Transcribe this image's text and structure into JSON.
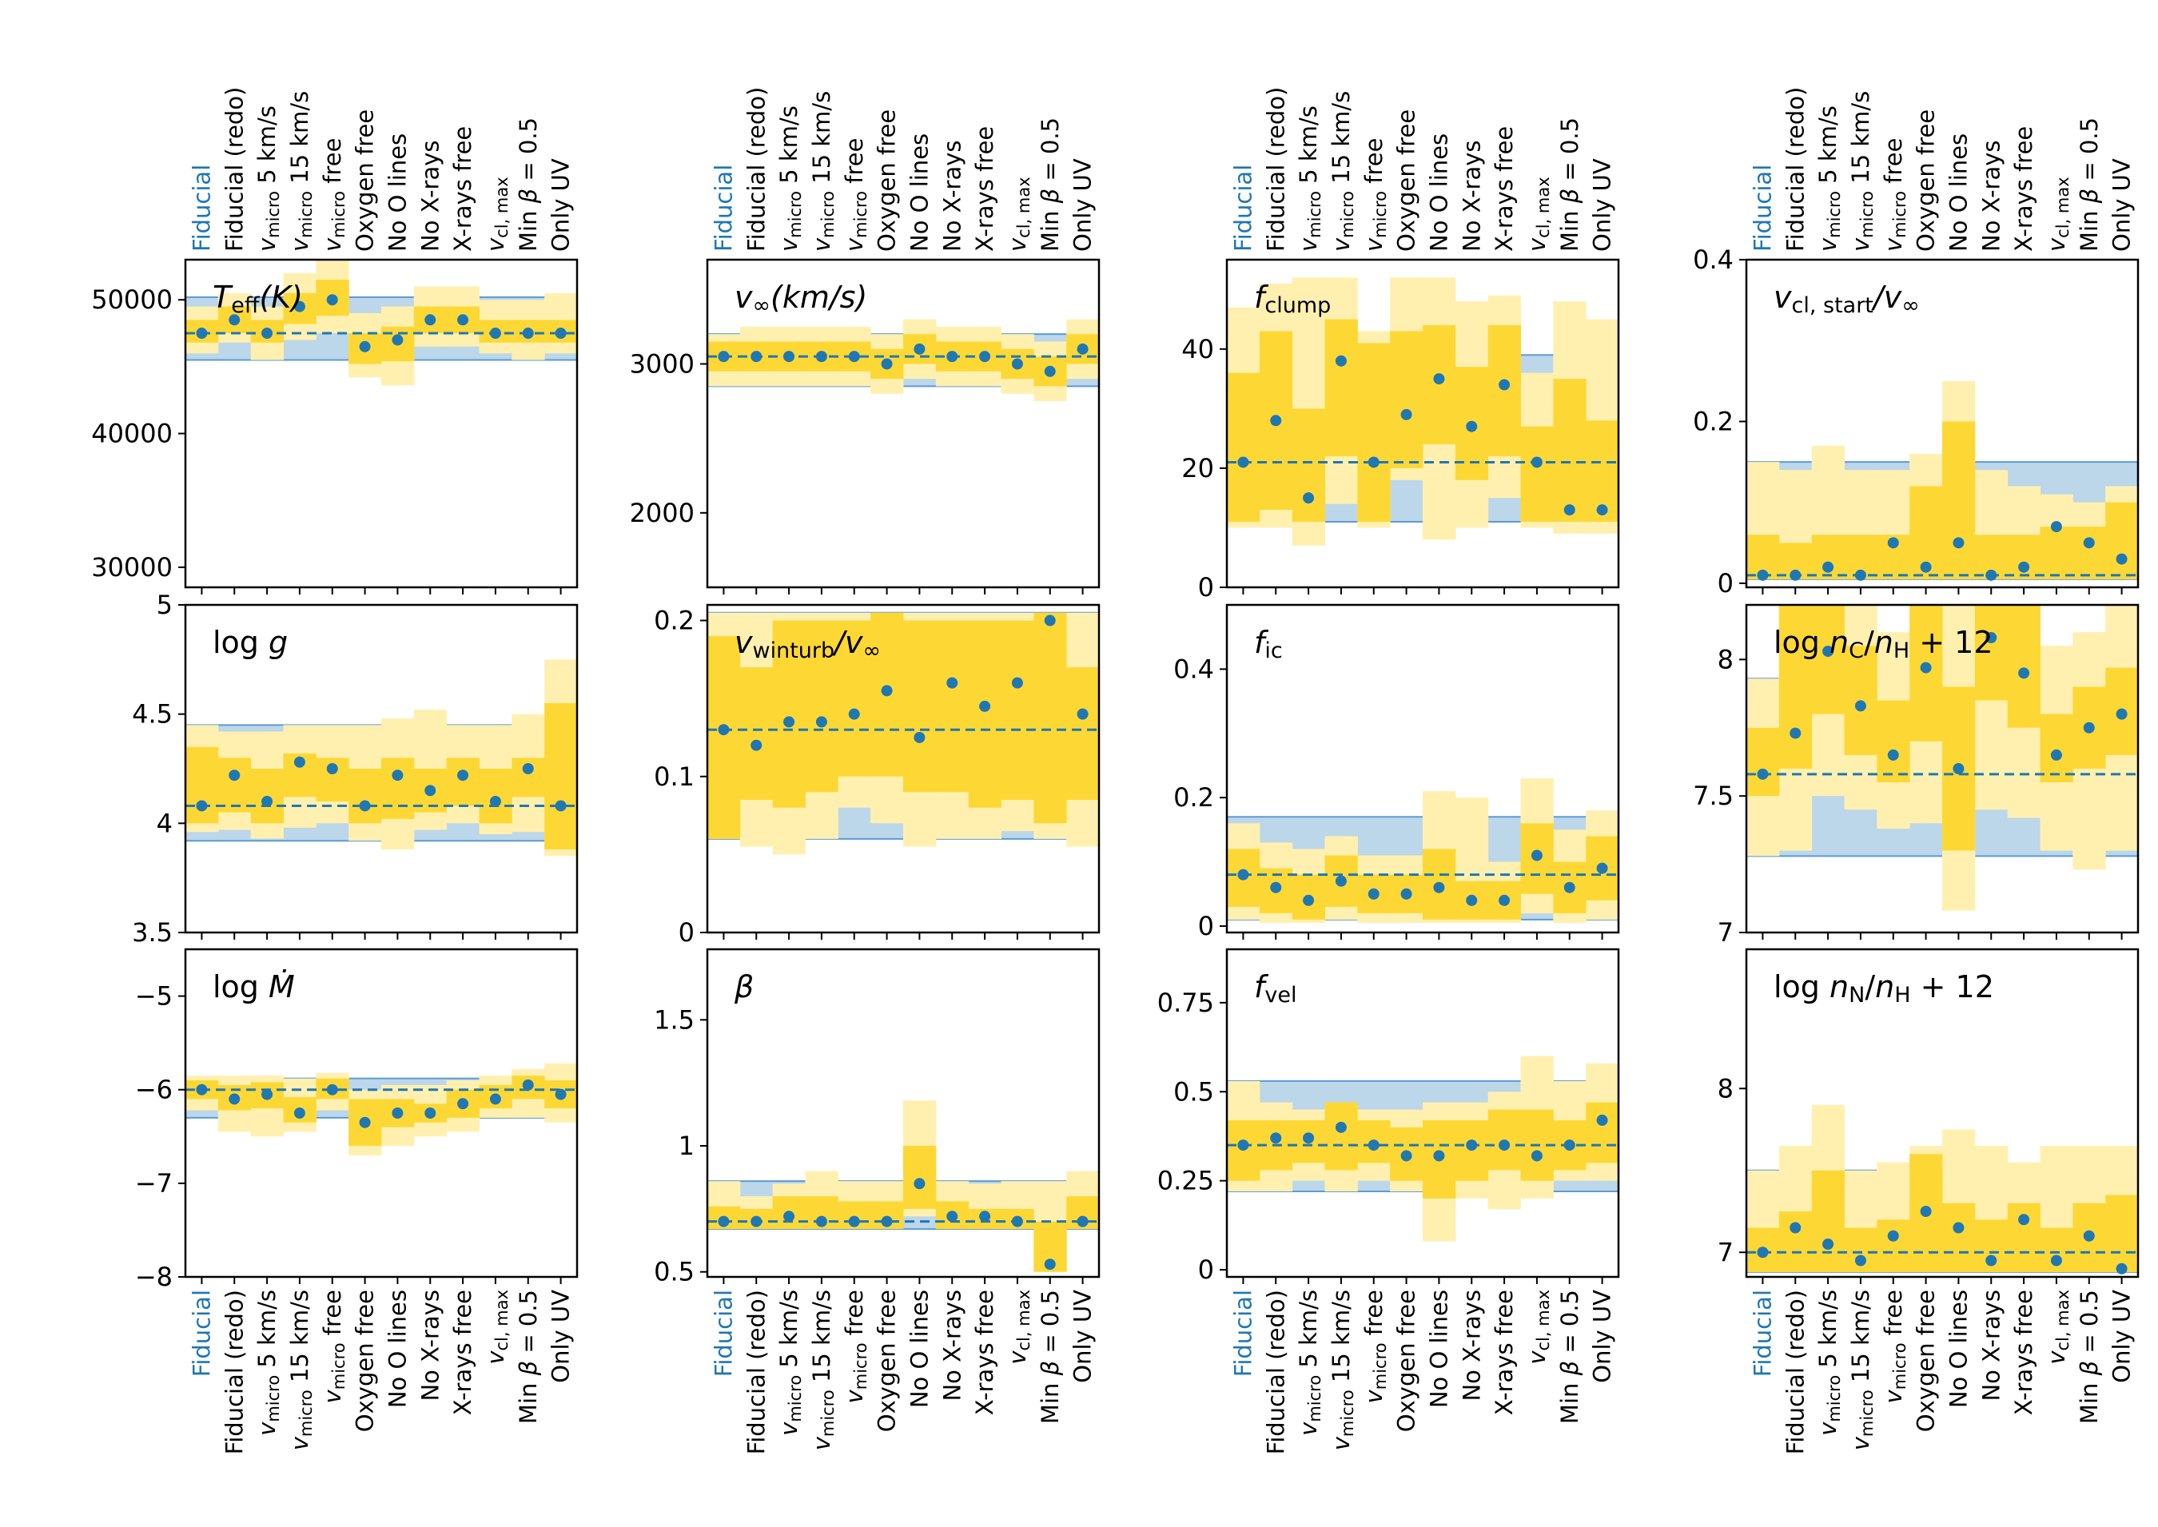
{
  "run_labels": [
    "Fiducial",
    "Fiducial (redo)",
    "v_micro 5 km/s",
    "v_micro 15 km/s",
    "v_micro free",
    "Oxygen free",
    "No O lines",
    "No X-rays",
    "X-rays free",
    "v_cl,max",
    "Min β = 0.5",
    "Only UV"
  ],
  "colors": {
    "fiducial_band": "#bcd6ea",
    "fiducial_edge": "#5b9bd5",
    "range_outer": "#fff0b0",
    "range_inner": "#fdd835",
    "point": "#1f77b4",
    "fiducial_label": "#1f77b4",
    "axis": "#000000"
  },
  "chart_data": [
    {
      "type": "scatter",
      "title": "T_eff(K)",
      "ylim": [
        28500,
        53000
      ],
      "yticks": [
        30000,
        40000,
        50000
      ],
      "fiducial": 47500,
      "fid_lo": 45500,
      "fid_hi": 50200,
      "values": [
        47500,
        48500,
        47500,
        49500,
        50000,
        46500,
        47000,
        48500,
        48500,
        47500,
        47500,
        47500
      ],
      "inner_lo": [
        46800,
        47500,
        46800,
        48200,
        48800,
        45200,
        45400,
        47500,
        47500,
        46800,
        46800,
        46800
      ],
      "inner_hi": [
        48500,
        49500,
        48500,
        50500,
        51500,
        47500,
        48000,
        49500,
        49500,
        48500,
        48500,
        48500
      ],
      "outer_lo": [
        46000,
        46800,
        45500,
        47000,
        47500,
        44200,
        43600,
        46500,
        46500,
        46000,
        45500,
        46000
      ],
      "outer_hi": [
        49500,
        50500,
        49500,
        52000,
        53000,
        49000,
        49500,
        51000,
        51000,
        50000,
        50000,
        50500
      ]
    },
    {
      "type": "scatter",
      "title": "v_∞(km/s)",
      "ylim": [
        1500,
        3700
      ],
      "yticks": [
        2000,
        3000
      ],
      "fiducial": 3050,
      "fid_lo": 2850,
      "fid_hi": 3200,
      "values": [
        3050,
        3050,
        3050,
        3050,
        3050,
        3000,
        3100,
        3050,
        3050,
        3000,
        2950,
        3100
      ],
      "inner_lo": [
        2950,
        2950,
        2950,
        2950,
        2950,
        2900,
        3000,
        2950,
        2950,
        2900,
        2850,
        3000
      ],
      "inner_hi": [
        3150,
        3150,
        3150,
        3150,
        3150,
        3100,
        3200,
        3150,
        3150,
        3100,
        3050,
        3200
      ],
      "outer_lo": [
        2850,
        2850,
        2850,
        2850,
        2850,
        2800,
        2900,
        2850,
        2850,
        2800,
        2750,
        2900
      ],
      "outer_hi": [
        3200,
        3250,
        3250,
        3250,
        3250,
        3200,
        3300,
        3250,
        3250,
        3200,
        3150,
        3300
      ]
    },
    {
      "type": "scatter",
      "title": "f_clump",
      "ylim": [
        0,
        55
      ],
      "yticks": [
        0,
        20,
        40
      ],
      "fiducial": 21,
      "fid_lo": 11,
      "fid_hi": 39,
      "values": [
        21,
        28,
        15,
        38,
        21,
        29,
        35,
        27,
        34,
        21,
        13,
        13
      ],
      "inner_lo": [
        11,
        13,
        11,
        22,
        11,
        20,
        24,
        18,
        22,
        11,
        11,
        11
      ],
      "inner_hi": [
        36,
        43,
        30,
        45,
        41,
        43,
        44,
        37,
        44,
        27,
        35,
        28
      ],
      "outer_lo": [
        10,
        10,
        7,
        14,
        10,
        18,
        8,
        10,
        15,
        10,
        9,
        9
      ],
      "outer_hi": [
        47,
        51,
        52,
        52,
        43,
        52,
        52,
        48,
        49,
        36,
        48,
        45
      ]
    },
    {
      "type": "scatter",
      "title": "v_cl,start/v_∞",
      "ylim": [
        -0.005,
        0.4
      ],
      "yticks": [
        0.0,
        0.2,
        0.4
      ],
      "fiducial": 0.01,
      "fid_lo": 0.005,
      "fid_hi": 0.15,
      "values": [
        0.01,
        0.01,
        0.02,
        0.01,
        0.05,
        0.02,
        0.05,
        0.01,
        0.02,
        0.07,
        0.05,
        0.03
      ],
      "inner_lo": [
        0.005,
        0.005,
        0.005,
        0.005,
        0.005,
        0.005,
        0.005,
        0.005,
        0.005,
        0.005,
        0.005,
        0.005
      ],
      "inner_hi": [
        0.06,
        0.05,
        0.06,
        0.06,
        0.06,
        0.12,
        0.2,
        0.06,
        0.06,
        0.07,
        0.07,
        0.1
      ],
      "outer_lo": [
        0.005,
        0.005,
        0.005,
        0.005,
        0.005,
        0.005,
        0.005,
        0.005,
        0.005,
        0.005,
        0.005,
        0.005
      ],
      "outer_hi": [
        0.15,
        0.14,
        0.17,
        0.14,
        0.14,
        0.16,
        0.25,
        0.14,
        0.12,
        0.11,
        0.1,
        0.12
      ]
    },
    {
      "type": "scatter",
      "title": "log g",
      "ylim": [
        3.5,
        5.0
      ],
      "yticks": [
        3.5,
        4.0,
        4.5,
        5.0
      ],
      "fiducial": 4.08,
      "fid_lo": 3.92,
      "fid_hi": 4.45,
      "values": [
        4.08,
        4.22,
        4.1,
        4.28,
        4.25,
        4.08,
        4.22,
        4.15,
        4.22,
        4.1,
        4.25,
        4.08
      ],
      "inner_lo": [
        4.0,
        4.05,
        4.0,
        4.12,
        4.1,
        4.0,
        4.02,
        4.05,
        4.08,
        4.0,
        4.12,
        3.88
      ],
      "inner_hi": [
        4.35,
        4.3,
        4.25,
        4.32,
        4.3,
        4.25,
        4.3,
        4.25,
        4.3,
        4.25,
        4.3,
        4.55
      ],
      "outer_lo": [
        3.96,
        3.97,
        3.93,
        3.98,
        4.0,
        3.92,
        3.88,
        3.97,
        4.0,
        3.95,
        3.96,
        3.85
      ],
      "outer_hi": [
        4.45,
        4.42,
        4.42,
        4.45,
        4.45,
        4.45,
        4.48,
        4.52,
        4.45,
        4.45,
        4.5,
        4.75
      ]
    },
    {
      "type": "scatter",
      "title": "v_winturb/v_∞",
      "ylim": [
        0.0,
        0.21
      ],
      "yticks": [
        0.0,
        0.1,
        0.2
      ],
      "fiducial": 0.13,
      "fid_lo": 0.06,
      "fid_hi": 0.205,
      "values": [
        0.13,
        0.12,
        0.135,
        0.135,
        0.14,
        0.155,
        0.125,
        0.16,
        0.145,
        0.16,
        0.2,
        0.14
      ],
      "inner_lo": [
        0.06,
        0.085,
        0.08,
        0.09,
        0.1,
        0.1,
        0.09,
        0.09,
        0.08,
        0.085,
        0.07,
        0.085
      ],
      "inner_hi": [
        0.19,
        0.17,
        0.2,
        0.2,
        0.2,
        0.205,
        0.2,
        0.2,
        0.2,
        0.2,
        0.205,
        0.17
      ],
      "outer_lo": [
        0.06,
        0.055,
        0.05,
        0.06,
        0.08,
        0.07,
        0.055,
        0.06,
        0.06,
        0.065,
        0.06,
        0.055
      ],
      "outer_hi": [
        0.205,
        0.205,
        0.205,
        0.205,
        0.205,
        0.205,
        0.205,
        0.205,
        0.205,
        0.205,
        0.205,
        0.205
      ]
    },
    {
      "type": "scatter",
      "title": "f_ic",
      "ylim": [
        -0.01,
        0.5
      ],
      "yticks": [
        0.0,
        0.2,
        0.4
      ],
      "fiducial": 0.08,
      "fid_lo": 0.01,
      "fid_hi": 0.17,
      "values": [
        0.08,
        0.06,
        0.04,
        0.07,
        0.05,
        0.05,
        0.06,
        0.04,
        0.04,
        0.11,
        0.06,
        0.09
      ],
      "inner_lo": [
        0.03,
        0.02,
        0.01,
        0.03,
        0.02,
        0.02,
        0.01,
        0.01,
        0.01,
        0.05,
        0.02,
        0.04
      ],
      "inner_hi": [
        0.12,
        0.09,
        0.08,
        0.11,
        0.08,
        0.08,
        0.12,
        0.07,
        0.07,
        0.16,
        0.1,
        0.14
      ],
      "outer_lo": [
        0.01,
        0.005,
        0.005,
        0.01,
        0.005,
        0.005,
        0.005,
        0.005,
        0.005,
        0.02,
        0.005,
        0.01
      ],
      "outer_hi": [
        0.16,
        0.13,
        0.12,
        0.14,
        0.11,
        0.11,
        0.21,
        0.2,
        0.1,
        0.23,
        0.15,
        0.18
      ]
    },
    {
      "type": "scatter",
      "title": "log n_C/n_H + 12",
      "ylim": [
        7.0,
        8.2
      ],
      "yticks": [
        7.0,
        7.5,
        8.0
      ],
      "fiducial": 7.58,
      "fid_lo": 7.28,
      "fid_hi": 7.93,
      "values": [
        7.58,
        7.73,
        8.03,
        7.83,
        7.65,
        7.97,
        7.6,
        8.08,
        7.95,
        7.65,
        7.75,
        7.8
      ],
      "inner_lo": [
        7.5,
        7.6,
        7.8,
        7.65,
        7.55,
        7.7,
        7.3,
        7.85,
        7.75,
        7.55,
        7.6,
        7.65
      ],
      "inner_hi": [
        7.75,
        8.2,
        8.2,
        8.05,
        7.85,
        8.2,
        7.9,
        8.2,
        8.2,
        7.8,
        7.9,
        7.97
      ],
      "outer_lo": [
        7.28,
        7.3,
        7.5,
        7.45,
        7.38,
        7.4,
        7.08,
        7.45,
        7.42,
        7.3,
        7.23,
        7.3
      ],
      "outer_hi": [
        7.93,
        8.2,
        8.2,
        8.2,
        8.1,
        8.2,
        8.2,
        8.2,
        8.2,
        8.05,
        8.1,
        8.2
      ]
    },
    {
      "type": "scatter",
      "title": "log Ṁ",
      "ylim": [
        -8,
        -4.5
      ],
      "yticks": [
        -8,
        -7,
        -6,
        -5
      ],
      "fiducial": -6.0,
      "fid_lo": -6.3,
      "fid_hi": -5.88,
      "values": [
        -6.0,
        -6.1,
        -6.05,
        -6.25,
        -6.0,
        -6.35,
        -6.25,
        -6.25,
        -6.15,
        -6.1,
        -5.95,
        -6.05
      ],
      "inner_lo": [
        -6.1,
        -6.22,
        -6.2,
        -6.35,
        -6.1,
        -6.6,
        -6.4,
        -6.35,
        -6.3,
        -6.2,
        -6.1,
        -6.2
      ],
      "inner_hi": [
        -5.9,
        -5.95,
        -5.92,
        -6.08,
        -5.88,
        -6.1,
        -6.1,
        -6.15,
        -6.0,
        -5.95,
        -5.85,
        -5.9
      ],
      "outer_lo": [
        -6.22,
        -6.45,
        -6.5,
        -6.45,
        -6.22,
        -6.7,
        -6.6,
        -6.5,
        -6.45,
        -6.3,
        -6.3,
        -6.35
      ],
      "outer_hi": [
        -5.85,
        -5.85,
        -5.85,
        -5.88,
        -5.82,
        -6.0,
        -5.95,
        -5.95,
        -5.9,
        -5.85,
        -5.78,
        -5.72
      ]
    },
    {
      "type": "scatter",
      "title": "β",
      "ylim": [
        0.48,
        1.78
      ],
      "yticks": [
        0.5,
        1.0,
        1.5
      ],
      "fiducial": 0.7,
      "fid_lo": 0.67,
      "fid_hi": 0.86,
      "values": [
        0.7,
        0.7,
        0.72,
        0.7,
        0.7,
        0.7,
        0.85,
        0.72,
        0.72,
        0.7,
        0.53,
        0.7
      ],
      "inner_lo": [
        0.67,
        0.67,
        0.67,
        0.67,
        0.67,
        0.67,
        0.75,
        0.67,
        0.67,
        0.67,
        0.5,
        0.67
      ],
      "inner_hi": [
        0.76,
        0.75,
        0.8,
        0.8,
        0.78,
        0.78,
        1.0,
        0.78,
        0.75,
        0.75,
        0.7,
        0.8
      ],
      "outer_lo": [
        0.67,
        0.67,
        0.67,
        0.67,
        0.67,
        0.67,
        0.72,
        0.67,
        0.67,
        0.67,
        0.5,
        0.67
      ],
      "outer_hi": [
        0.86,
        0.8,
        0.85,
        0.9,
        0.86,
        0.86,
        1.18,
        0.86,
        0.85,
        0.86,
        0.86,
        0.9
      ]
    },
    {
      "type": "scatter",
      "title": "f_vel",
      "ylim": [
        -0.02,
        0.9
      ],
      "yticks": [
        0.0,
        0.25,
        0.5,
        0.75
      ],
      "fiducial": 0.35,
      "fid_lo": 0.22,
      "fid_hi": 0.53,
      "values": [
        0.35,
        0.37,
        0.37,
        0.4,
        0.35,
        0.32,
        0.32,
        0.35,
        0.35,
        0.32,
        0.35,
        0.42
      ],
      "inner_lo": [
        0.25,
        0.28,
        0.3,
        0.28,
        0.3,
        0.25,
        0.2,
        0.25,
        0.28,
        0.25,
        0.28,
        0.3
      ],
      "inner_hi": [
        0.42,
        0.42,
        0.42,
        0.47,
        0.42,
        0.4,
        0.42,
        0.42,
        0.45,
        0.45,
        0.42,
        0.47
      ],
      "outer_lo": [
        0.22,
        0.22,
        0.25,
        0.22,
        0.25,
        0.22,
        0.08,
        0.2,
        0.17,
        0.2,
        0.25,
        0.25
      ],
      "outer_hi": [
        0.53,
        0.47,
        0.45,
        0.45,
        0.45,
        0.45,
        0.47,
        0.47,
        0.5,
        0.6,
        0.53,
        0.58
      ]
    },
    {
      "type": "scatter",
      "title": "log n_N/n_H + 12",
      "ylim": [
        6.85,
        8.85
      ],
      "yticks": [
        7,
        8
      ],
      "fiducial": 7.0,
      "fid_lo": 6.88,
      "fid_hi": 7.5,
      "values": [
        7.0,
        7.15,
        7.05,
        6.95,
        7.1,
        7.25,
        7.15,
        6.95,
        7.2,
        6.95,
        7.1,
        6.9
      ],
      "inner_lo": [
        6.88,
        6.88,
        6.88,
        6.88,
        6.88,
        6.88,
        6.88,
        6.88,
        6.88,
        6.88,
        6.88,
        6.88
      ],
      "inner_hi": [
        7.15,
        7.25,
        7.5,
        7.15,
        7.2,
        7.6,
        7.3,
        7.2,
        7.3,
        7.15,
        7.3,
        7.35
      ],
      "outer_lo": [
        6.88,
        6.88,
        6.88,
        6.88,
        6.88,
        6.88,
        6.88,
        6.88,
        6.88,
        6.88,
        6.88,
        6.88
      ],
      "outer_hi": [
        7.5,
        7.65,
        7.9,
        7.5,
        7.55,
        7.65,
        7.75,
        7.65,
        7.55,
        7.65,
        7.65,
        7.65
      ]
    }
  ]
}
